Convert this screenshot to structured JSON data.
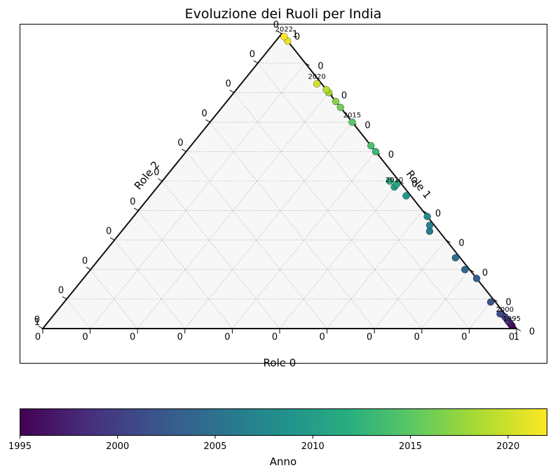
{
  "chart_data": {
    "type": "scatter",
    "subtype": "ternary",
    "title": "Evoluzione dei Ruoli per India",
    "axis_labels": {
      "bottom": "Role 0",
      "right": "Role 1",
      "left": "Role 2"
    },
    "tick_label": "0",
    "corner_labels": {
      "top": "1",
      "left": "1",
      "right": "1"
    },
    "grid": true,
    "colorbar": {
      "label": "Anno",
      "colormap": "viridis",
      "range": [
        1995,
        2022
      ],
      "ticks": [
        "1995",
        "2000",
        "2005",
        "2010",
        "2015",
        "2020"
      ]
    },
    "points": [
      {
        "year": 1995,
        "role0": 0.985,
        "role1": 0.01,
        "role2": 0.005
      },
      {
        "year": 1996,
        "role0": 0.98,
        "role1": 0.015,
        "role2": 0.005
      },
      {
        "year": 1997,
        "role0": 0.975,
        "role1": 0.02,
        "role2": 0.005
      },
      {
        "year": 1998,
        "role0": 0.97,
        "role1": 0.025,
        "role2": 0.005
      },
      {
        "year": 1999,
        "role0": 0.965,
        "role1": 0.03,
        "role2": 0.005
      },
      {
        "year": 2000,
        "role0": 0.955,
        "role1": 0.04,
        "role2": 0.005
      },
      {
        "year": 2001,
        "role0": 0.94,
        "role1": 0.05,
        "role2": 0.01
      },
      {
        "year": 2002,
        "role0": 0.9,
        "role1": 0.09,
        "role2": 0.01
      },
      {
        "year": 2003,
        "role0": 0.83,
        "role1": 0.17,
        "role2": 0.0
      },
      {
        "year": 2004,
        "role0": 0.79,
        "role1": 0.2,
        "role2": 0.01
      },
      {
        "year": 2005,
        "role0": 0.75,
        "role1": 0.24,
        "role2": 0.01
      },
      {
        "year": 2006,
        "role0": 0.65,
        "role1": 0.33,
        "role2": 0.02
      },
      {
        "year": 2007,
        "role0": 0.64,
        "role1": 0.35,
        "role2": 0.01
      },
      {
        "year": 2008,
        "role0": 0.62,
        "role1": 0.38,
        "role2": 0.0
      },
      {
        "year": 2009,
        "role0": 0.54,
        "role1": 0.45,
        "role2": 0.01
      },
      {
        "year": 2010,
        "role0": 0.5,
        "role1": 0.48,
        "role2": 0.02
      },
      {
        "year": 2011,
        "role0": 0.5,
        "role1": 0.49,
        "role2": 0.01
      },
      {
        "year": 2012,
        "role0": 0.48,
        "role1": 0.5,
        "role2": 0.02
      },
      {
        "year": 2013,
        "role0": 0.4,
        "role1": 0.6,
        "role2": 0.0
      },
      {
        "year": 2014,
        "role0": 0.38,
        "role1": 0.62,
        "role2": 0.0
      },
      {
        "year": 2015,
        "role0": 0.3,
        "role1": 0.7,
        "role2": 0.0
      },
      {
        "year": 2016,
        "role0": 0.25,
        "role1": 0.75,
        "role2": 0.0
      },
      {
        "year": 2017,
        "role0": 0.23,
        "role1": 0.77,
        "role2": 0.0
      },
      {
        "year": 2018,
        "role0": 0.2,
        "role1": 0.8,
        "role2": 0.0
      },
      {
        "year": 2019,
        "role0": 0.19,
        "role1": 0.81,
        "role2": 0.0
      },
      {
        "year": 2020,
        "role0": 0.16,
        "role1": 0.83,
        "role2": 0.01
      },
      {
        "year": 2021,
        "role0": 0.025,
        "role1": 0.975,
        "role2": 0.0
      },
      {
        "year": 2022,
        "role0": 0.01,
        "role1": 0.99,
        "role2": 0.0
      }
    ],
    "annotations": [
      {
        "text": "1995",
        "year": 1995
      },
      {
        "text": "2000",
        "year": 2000
      },
      {
        "text": "2010",
        "year": 2010
      },
      {
        "text": "2015",
        "year": 2015
      },
      {
        "text": "2020",
        "year": 2020
      },
      {
        "text": "2022",
        "year": 2022
      }
    ]
  }
}
